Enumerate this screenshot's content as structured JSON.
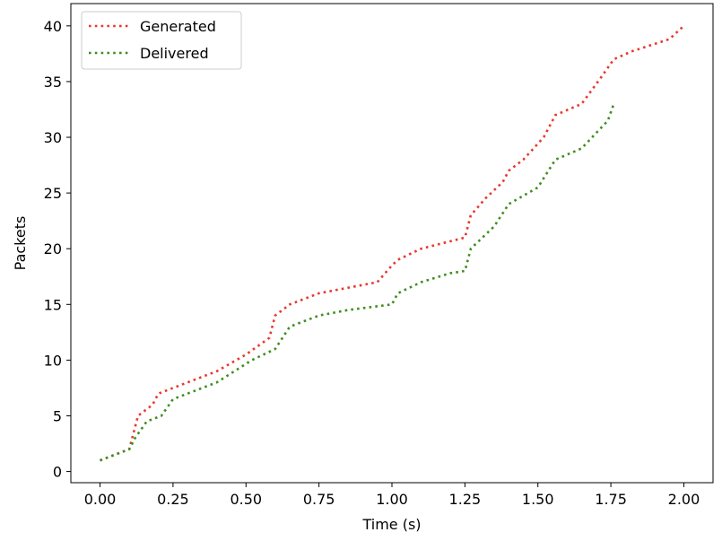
{
  "chart_data": {
    "type": "line",
    "xlabel": "Time (s)",
    "ylabel": "Packets",
    "xlim": [
      -0.1,
      2.1
    ],
    "ylim": [
      -1,
      42
    ],
    "xticks": [
      0.0,
      0.25,
      0.5,
      0.75,
      1.0,
      1.25,
      1.5,
      1.75,
      2.0
    ],
    "xtick_labels": [
      "0.00",
      "0.25",
      "0.50",
      "0.75",
      "1.00",
      "1.25",
      "1.50",
      "1.75",
      "2.00"
    ],
    "yticks": [
      0,
      5,
      10,
      15,
      20,
      25,
      30,
      35,
      40
    ],
    "ytick_labels": [
      "0",
      "5",
      "10",
      "15",
      "20",
      "25",
      "30",
      "35",
      "40"
    ],
    "grid": false,
    "legend_position": "top-left",
    "series": [
      {
        "name": "Generated",
        "color": "#e8382e",
        "line_style": "dotted",
        "x": [
          0.0,
          0.1,
          0.13,
          0.18,
          0.2,
          0.3,
          0.4,
          0.5,
          0.58,
          0.6,
          0.65,
          0.75,
          0.95,
          1.0,
          1.02,
          1.1,
          1.25,
          1.27,
          1.32,
          1.38,
          1.4,
          1.45,
          1.52,
          1.56,
          1.65,
          1.72,
          1.76,
          1.82,
          1.95,
          2.0
        ],
        "y": [
          1,
          2,
          5,
          6,
          7,
          8,
          9,
          10.5,
          12,
          14,
          15,
          16,
          17,
          18.5,
          19,
          20,
          21,
          23,
          24.5,
          26,
          27,
          28,
          30,
          32,
          33,
          35.5,
          37,
          37.7,
          38.8,
          40
        ]
      },
      {
        "name": "Delivered",
        "color": "#3e8e1e",
        "line_style": "dotted",
        "x": [
          0.0,
          0.1,
          0.12,
          0.16,
          0.21,
          0.25,
          0.4,
          0.52,
          0.6,
          0.65,
          0.75,
          0.85,
          1.0,
          1.02,
          1.1,
          1.2,
          1.25,
          1.27,
          1.35,
          1.4,
          1.5,
          1.56,
          1.65,
          1.74,
          1.76
        ],
        "y": [
          1,
          2,
          3,
          4.5,
          5,
          6.5,
          8,
          10,
          11,
          13,
          14,
          14.5,
          15,
          16,
          17,
          17.8,
          18,
          20,
          22,
          24,
          25.5,
          28,
          29,
          31.5,
          33
        ]
      }
    ]
  }
}
